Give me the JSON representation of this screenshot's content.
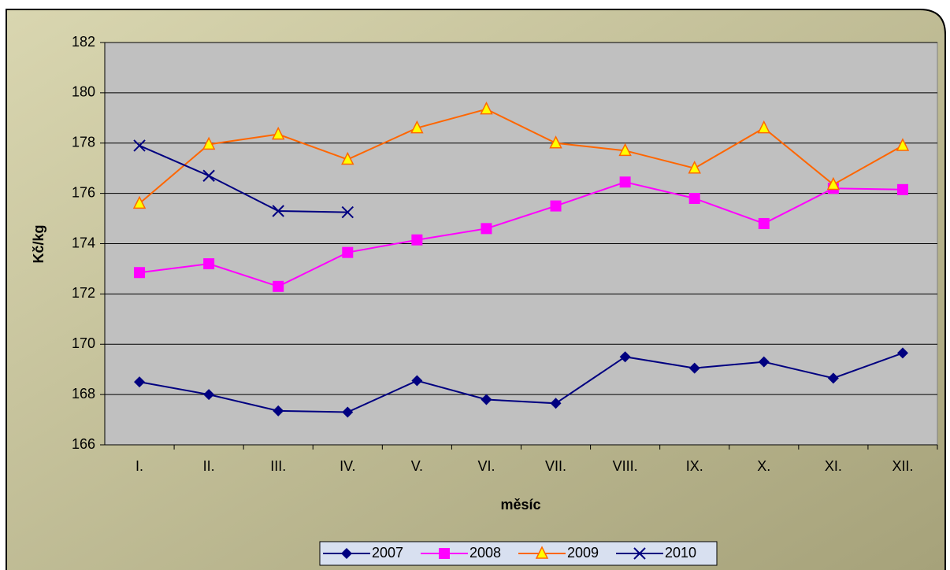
{
  "chart_data": {
    "type": "line",
    "x_label": "měsíc",
    "y_label": "Kč/kg",
    "categories": [
      "I.",
      "II.",
      "III.",
      "IV.",
      "V.",
      "VI.",
      "VII.",
      "VIII.",
      "IX.",
      "X.",
      "XI.",
      "XII."
    ],
    "series": [
      {
        "name": "2007",
        "color": "#000080",
        "marker": "diamond",
        "values": [
          168.5,
          168.0,
          167.35,
          167.3,
          168.55,
          167.8,
          167.65,
          169.5,
          169.05,
          169.3,
          168.65,
          169.65
        ]
      },
      {
        "name": "2008",
        "color": "#ff00ff",
        "marker": "square",
        "values": [
          172.85,
          173.2,
          172.3,
          173.65,
          174.15,
          174.6,
          175.5,
          176.45,
          175.8,
          174.8,
          176.2,
          176.15
        ]
      },
      {
        "name": "2009",
        "color": "#ff6600",
        "marker": "triangle",
        "values": [
          175.6,
          177.95,
          178.35,
          177.35,
          178.6,
          179.35,
          178.0,
          177.7,
          177.0,
          178.6,
          176.35,
          177.9
        ]
      },
      {
        "name": "2010",
        "color": "#000080",
        "marker": "x",
        "values": [
          177.9,
          176.7,
          175.3,
          175.25,
          null,
          null,
          null,
          null,
          null,
          null,
          null,
          null
        ]
      }
    ],
    "ylim": [
      166,
      182
    ],
    "yticks": [
      166,
      168,
      170,
      172,
      174,
      176,
      178,
      180,
      182
    ],
    "grid": true,
    "legend": "bottom"
  }
}
